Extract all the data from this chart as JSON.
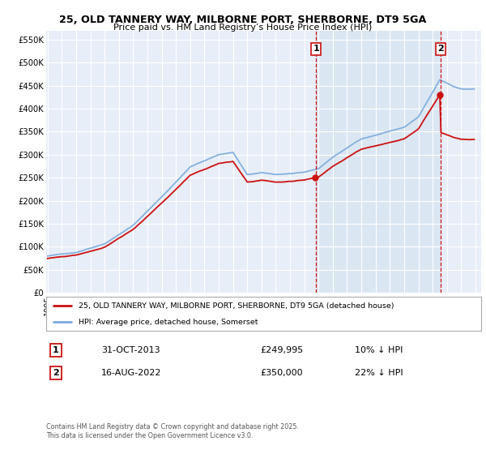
{
  "title": "25, OLD TANNERY WAY, MILBORNE PORT, SHERBORNE, DT9 5GA",
  "subtitle": "Price paid vs. HM Land Registry’s House Price Index (HPI)",
  "ylabel_ticks": [
    "£0",
    "£50K",
    "£100K",
    "£150K",
    "£200K",
    "£250K",
    "£300K",
    "£350K",
    "£400K",
    "£450K",
    "£500K",
    "£550K"
  ],
  "ytick_values": [
    0,
    50000,
    100000,
    150000,
    200000,
    250000,
    300000,
    350000,
    400000,
    450000,
    500000,
    550000
  ],
  "ylim": [
    0,
    570000
  ],
  "background_color": "#ffffff",
  "plot_bg_color": "#e8eef8",
  "grid_color": "#ffffff",
  "hpi_color": "#7aaadd",
  "price_color": "#cc1111",
  "vline_color": "#cc1111",
  "shade_color": "#d0e0f0",
  "ann1_x": 2013.833,
  "ann2_x": 2022.583,
  "sale1_price": 249995,
  "sale2_price": 350000,
  "legend_line1": "25, OLD TANNERY WAY, MILBORNE PORT, SHERBORNE, DT9 5GA (detached house)",
  "legend_line2": "HPI: Average price, detached house, Somerset",
  "footer1": "Contains HM Land Registry data © Crown copyright and database right 2025.",
  "footer2": "This data is licensed under the Open Government Licence v3.0.",
  "table_row1": [
    "1",
    "31-OCT-2013",
    "£249,995",
    "10% ↓ HPI"
  ],
  "table_row2": [
    "2",
    "16-AUG-2022",
    "£350,000",
    "22% ↓ HPI"
  ],
  "xlim": [
    1994.9,
    2025.4
  ],
  "x_tick_years": [
    1995,
    1996,
    1997,
    1998,
    1999,
    2000,
    2001,
    2002,
    2003,
    2004,
    2005,
    2006,
    2007,
    2008,
    2009,
    2010,
    2011,
    2012,
    2013,
    2014,
    2015,
    2016,
    2017,
    2018,
    2019,
    2020,
    2021,
    2022,
    2023,
    2024,
    2025
  ]
}
